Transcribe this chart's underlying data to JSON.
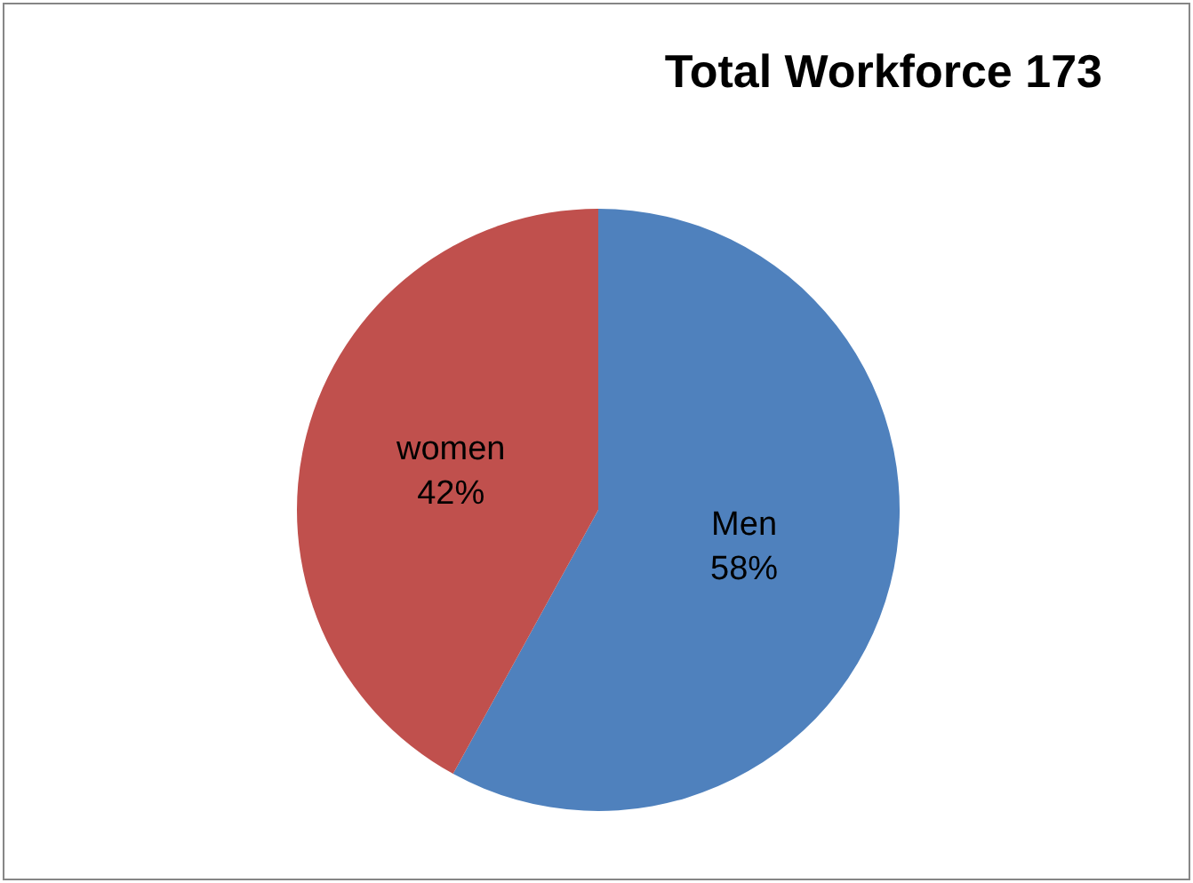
{
  "chart_data": {
    "type": "pie",
    "title": "Total Workforce 173",
    "categories": [
      "Men",
      "women"
    ],
    "values": [
      58,
      42
    ],
    "value_labels": [
      "58%",
      "42%"
    ],
    "colors": [
      "#4f81bd",
      "#c0504d"
    ],
    "legend": false
  }
}
